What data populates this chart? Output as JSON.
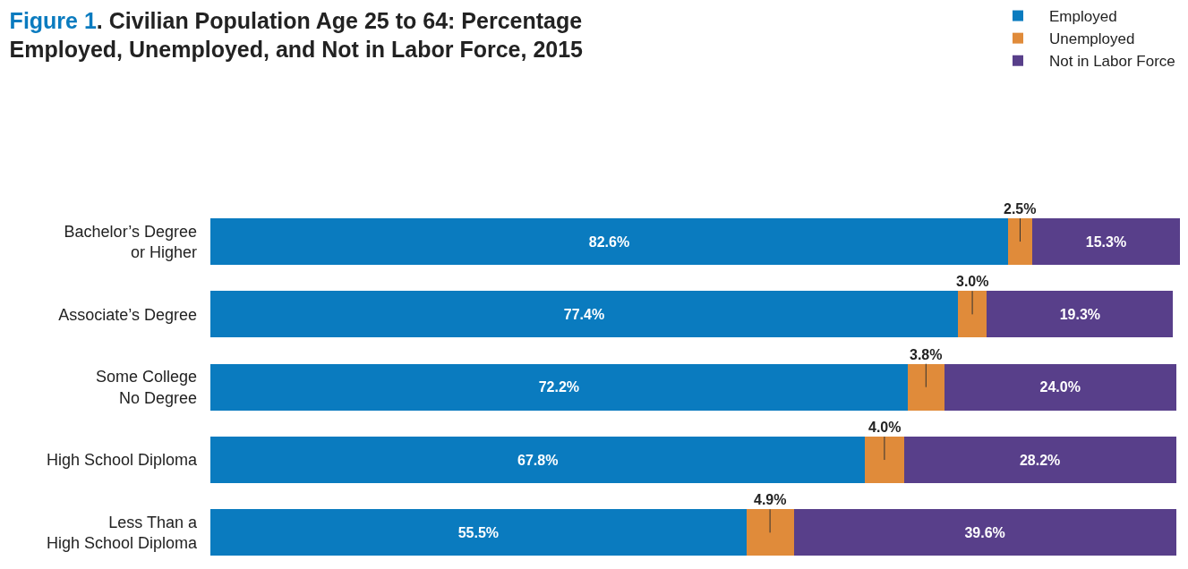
{
  "chart_data": {
    "type": "bar",
    "orientation": "horizontal",
    "stacked": true,
    "title": "Figure 1. Civilian Population Age 25 to 64: Percentage\nEmployed, Unemployed, and Not in Labor Force, 2015",
    "categories": [
      "Bachelor’s Degree\nor Higher",
      "Associate’s Degree",
      "Some College\nNo Degree",
      "High School Diploma",
      "Less Than a\nHigh School Diploma"
    ],
    "series": [
      {
        "name": "Employed",
        "color": "#0a7bbf",
        "values": [
          82.6,
          77.4,
          72.2,
          67.8,
          55.5
        ],
        "value_labels": [
          "82.6%",
          "77.4%",
          "72.2%",
          "67.8%",
          "55.5%"
        ]
      },
      {
        "name": "Unemployed",
        "color": "#e08b3a",
        "values": [
          2.5,
          3.0,
          3.8,
          4.0,
          4.9
        ],
        "value_labels": [
          "2.5%",
          "3.0%",
          "3.8%",
          "4.0%",
          "4.9%"
        ]
      },
      {
        "name": "Not in Labor Force",
        "color": "#583f8a",
        "values": [
          15.3,
          19.3,
          24.0,
          28.2,
          39.6
        ],
        "value_labels": [
          "15.3%",
          "19.3%",
          "24.0%",
          "28.2%",
          "39.6%"
        ]
      }
    ],
    "xlim": [
      0,
      100.4
    ],
    "tick_labels": "y",
    "legend": "top right"
  }
}
